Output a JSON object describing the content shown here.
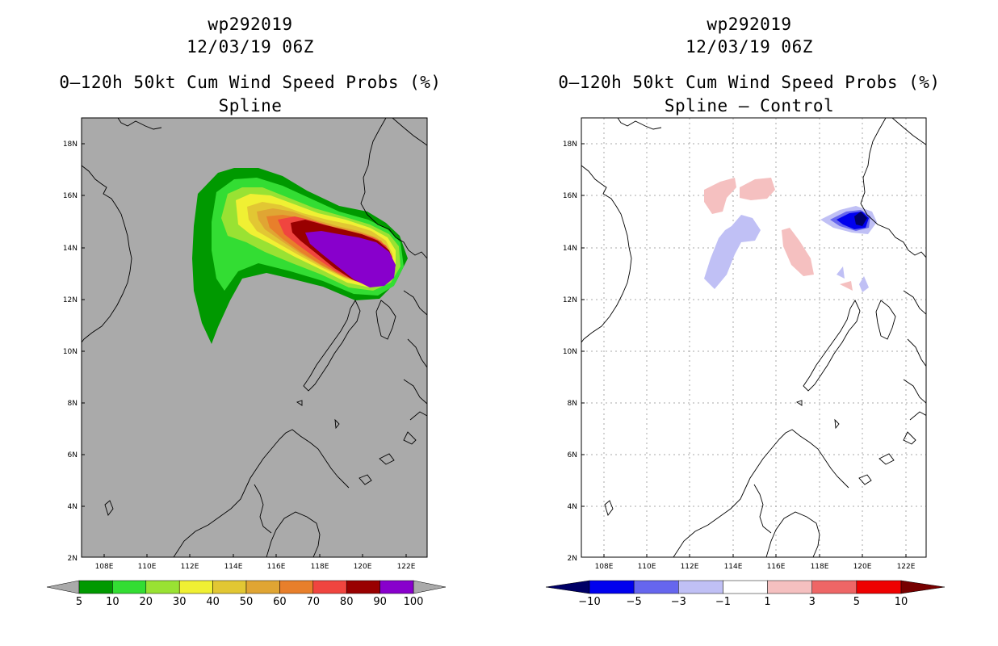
{
  "panels": [
    {
      "storm_id": "wp292019",
      "datetime": "12/03/19 06Z",
      "product": "0–120h 50kt Cum Wind Speed Probs (%)",
      "subtitle": "Spline",
      "lat_ticks": [
        "18N",
        "16N",
        "14N",
        "12N",
        "10N",
        "8N",
        "6N",
        "4N",
        "2N"
      ],
      "lon_ticks": [
        "108E",
        "110E",
        "112E",
        "114E",
        "116E",
        "118E",
        "120E",
        "122E"
      ],
      "colorbar": {
        "labels": [
          "5",
          "10",
          "20",
          "30",
          "40",
          "50",
          "60",
          "70",
          "80",
          "90",
          "100"
        ],
        "colors": [
          "#009900",
          "#33dd33",
          "#99e233",
          "#f0f033",
          "#e2c733",
          "#e0a533",
          "#e87f2b",
          "#f0453f",
          "#990000",
          "#8800cc"
        ]
      }
    },
    {
      "storm_id": "wp292019",
      "datetime": "12/03/19 06Z",
      "product": "0–120h 50kt Cum Wind Speed Probs (%)",
      "subtitle": "Spline – Control",
      "lat_ticks": [
        "18N",
        "16N",
        "14N",
        "12N",
        "10N",
        "8N",
        "6N",
        "4N",
        "2N"
      ],
      "lon_ticks": [
        "108E",
        "110E",
        "112E",
        "114E",
        "116E",
        "118E",
        "120E",
        "122E"
      ],
      "colorbar": {
        "labels": [
          "−10",
          "−5",
          "−3",
          "−1",
          "1",
          "3",
          "5",
          "10"
        ],
        "colors": [
          "#000066",
          "#0000ee",
          "#6666ee",
          "#c0c0f5",
          "#ffffff",
          "#f5c0c0",
          "#ee6666",
          "#ee0000",
          "#770000"
        ]
      }
    }
  ]
}
